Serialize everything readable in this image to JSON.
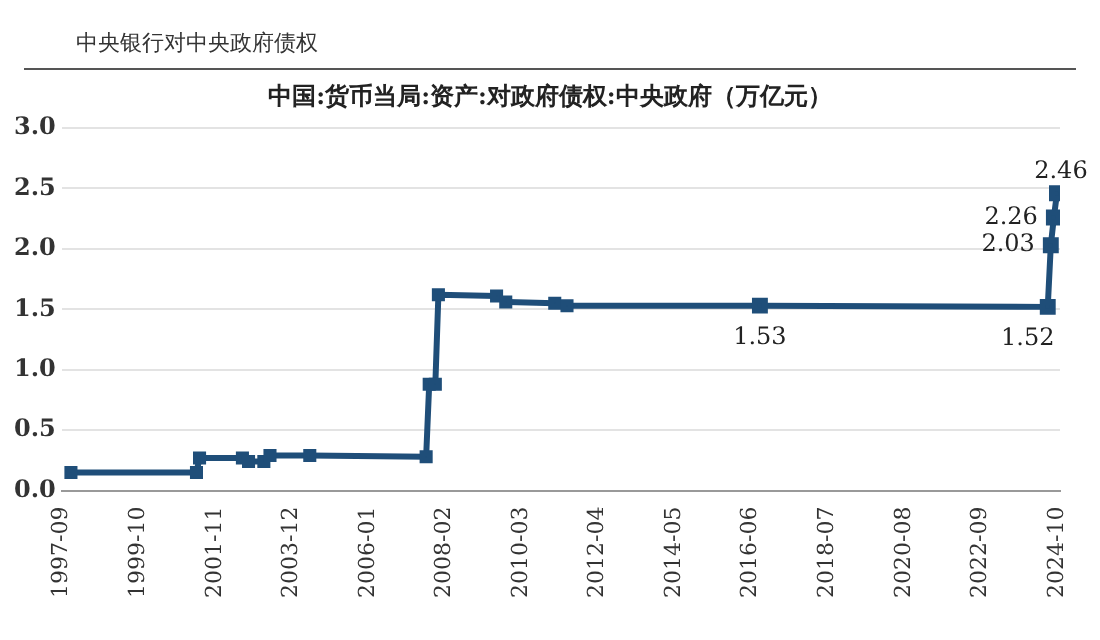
{
  "chart_data": {
    "type": "line",
    "title": "中国:货币当局:资产:对政府债权:中央政府（万亿元）",
    "annotations": [
      "中央银行对中央政府债权"
    ],
    "x": [
      "1997-12",
      "2001-05",
      "2001-06",
      "2002-08",
      "2002-10",
      "2003-03",
      "2003-05",
      "2004-06",
      "2007-08",
      "2007-09",
      "2007-11",
      "2007-12",
      "2009-07",
      "2009-10",
      "2011-02",
      "2011-06",
      "2016-09",
      "2024-07",
      "2024-08",
      "2024-09",
      "2024-10"
    ],
    "series": [
      {
        "color": "#1f4e79",
        "values": [
          0.15,
          0.15,
          0.27,
          0.27,
          0.24,
          0.24,
          0.29,
          0.29,
          0.28,
          0.88,
          0.88,
          1.62,
          1.61,
          1.56,
          1.55,
          1.53,
          1.53,
          1.52,
          2.03,
          2.26,
          2.46
        ],
        "value_labels": [
          null,
          null,
          null,
          null,
          null,
          null,
          null,
          null,
          null,
          null,
          null,
          null,
          null,
          null,
          null,
          null,
          "1.53",
          "1.52",
          "2.03",
          "2.26",
          "2.46"
        ]
      }
    ],
    "xlim": [
      "1997-09",
      "2024-11"
    ],
    "xticks": [
      "1997-09",
      "1999-10",
      "2001-11",
      "2003-12",
      "2006-01",
      "2008-02",
      "2010-03",
      "2012-04",
      "2014-05",
      "2016-06",
      "2018-07",
      "2020-08",
      "2022-09",
      "2024-10"
    ],
    "ylim": [
      0,
      3
    ],
    "yticks": [
      {
        "value": 0,
        "label": "0.0"
      },
      {
        "value": 0.5,
        "label": "0.5"
      },
      {
        "value": 1,
        "label": "1.0"
      },
      {
        "value": 1.5,
        "label": "1.5"
      },
      {
        "value": 2,
        "label": "2.0"
      },
      {
        "value": 2.5,
        "label": "2.5"
      },
      {
        "value": 3,
        "label": "3.0"
      }
    ],
    "grid": "y",
    "legend": false,
    "marker": "square",
    "line_style": "solid"
  }
}
